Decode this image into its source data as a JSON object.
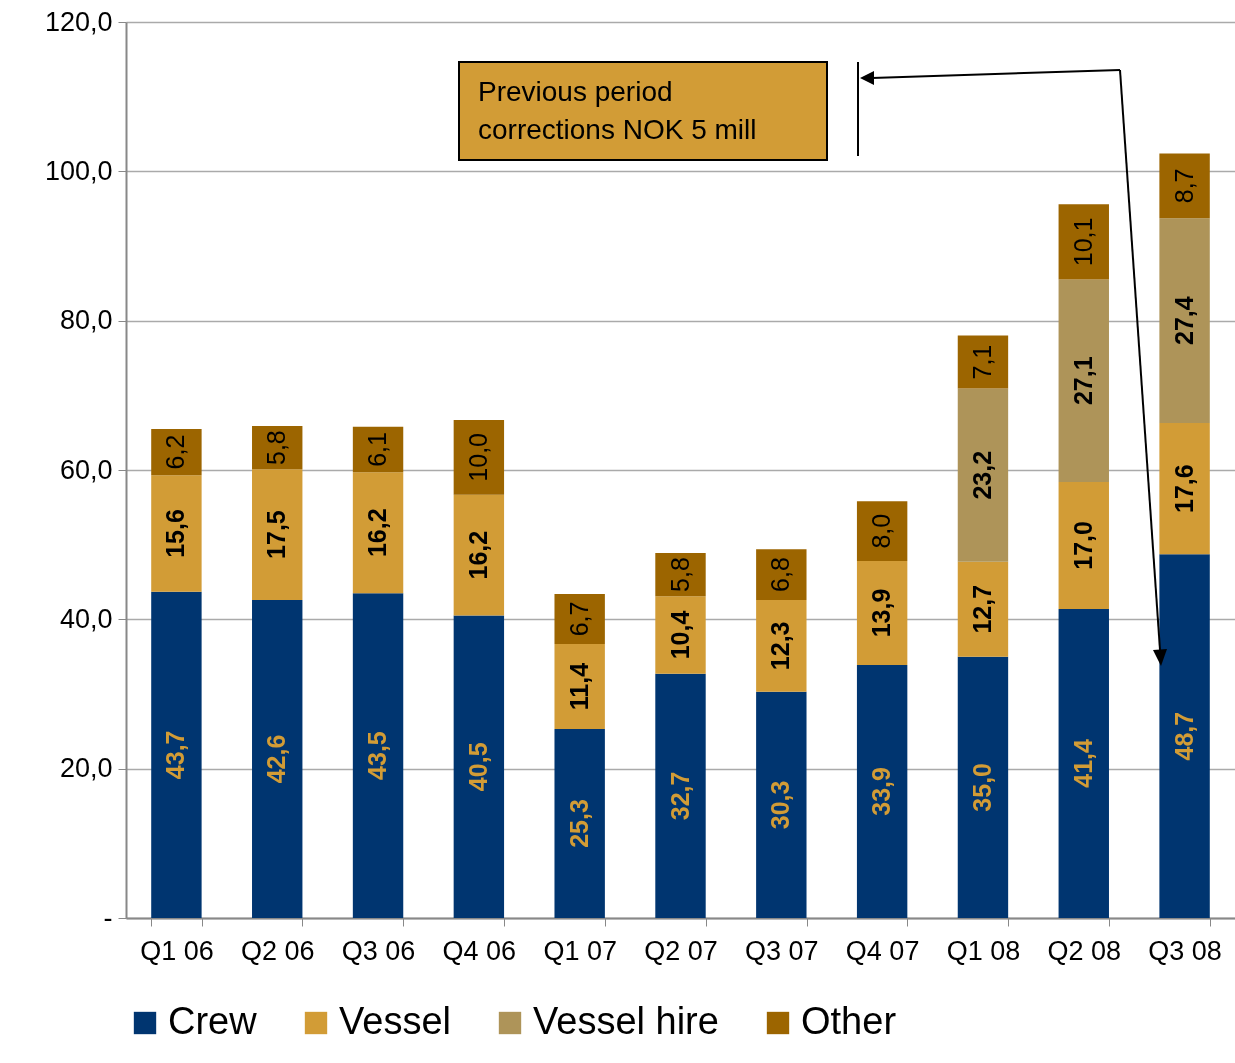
{
  "chart_data": {
    "type": "bar",
    "stacked": true,
    "categories": [
      "Q1 06",
      "Q2 06",
      "Q3 06",
      "Q4 06",
      "Q1 07",
      "Q2 07",
      "Q3 07",
      "Q4 07",
      "Q1 08",
      "Q2 08",
      "Q3 08"
    ],
    "series": [
      {
        "name": "Crew",
        "color": "#003570",
        "values": [
          43.7,
          42.6,
          43.5,
          40.5,
          25.3,
          32.7,
          30.3,
          33.9,
          35.0,
          41.4,
          48.7
        ],
        "value_labels": [
          "43,7",
          "42,6",
          "43,5",
          "40,5",
          "25,3",
          "32,7",
          "30,3",
          "33,9",
          "35,0",
          "41,4",
          "48,7"
        ]
      },
      {
        "name": "Vessel",
        "color": "#d29c36",
        "values": [
          15.6,
          17.5,
          16.2,
          16.2,
          11.4,
          10.4,
          12.3,
          13.9,
          12.7,
          17.0,
          17.6
        ],
        "value_labels": [
          "15,6",
          "17,5",
          "16,2",
          "16,2",
          "11,4",
          "10,4",
          "12,3",
          "13,9",
          "12,7",
          "17,0",
          "17,6"
        ]
      },
      {
        "name": "Vessel hire",
        "color": "#ae9459",
        "values": [
          null,
          null,
          null,
          null,
          null,
          null,
          null,
          null,
          23.2,
          27.1,
          27.4
        ],
        "value_labels": [
          null,
          null,
          null,
          null,
          null,
          null,
          null,
          null,
          "23,2",
          "27,1",
          "27,4"
        ]
      },
      {
        "name": "Other",
        "color": "#9c6500",
        "values": [
          6.2,
          5.8,
          6.1,
          10.0,
          6.7,
          5.8,
          6.8,
          8.0,
          7.1,
          10.1,
          8.7
        ],
        "value_labels": [
          "6,2",
          "5,8",
          "6,1",
          "10,0",
          "6,7",
          "5,8",
          "6,8",
          "8,0",
          "7,1",
          "10,1",
          "8,7"
        ]
      }
    ],
    "ylim": [
      0,
      120
    ],
    "yticks": [
      {
        "value": 0,
        "label": "-"
      },
      {
        "value": 20,
        "label": "20,0"
      },
      {
        "value": 40,
        "label": "40,0"
      },
      {
        "value": 60,
        "label": "60,0"
      },
      {
        "value": 80,
        "label": "80,0"
      },
      {
        "value": 100,
        "label": "100,0"
      },
      {
        "value": 120,
        "label": "120,0"
      }
    ],
    "grid": "y",
    "legend": "bottom",
    "annotations": [
      "Previous period corrections NOK 5 mill"
    ]
  }
}
